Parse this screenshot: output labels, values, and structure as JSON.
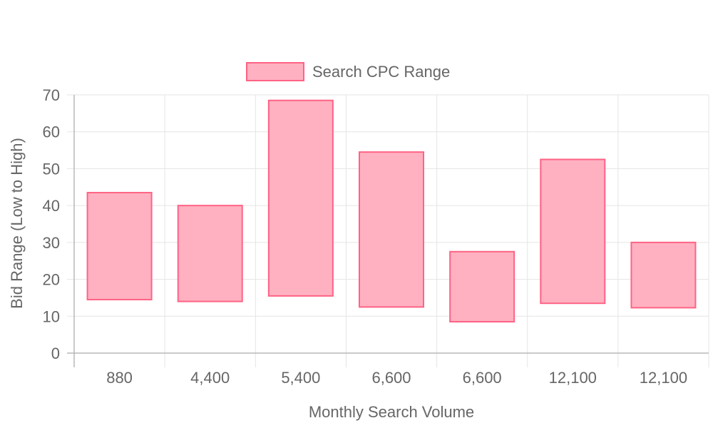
{
  "chart_data": {
    "type": "bar",
    "subtype": "floating-range",
    "xlabel": "Monthly Search Volume",
    "ylabel": "Bid Range (Low to High)",
    "categories": [
      "880",
      "4,400",
      "5,400",
      "6,600",
      "6,600",
      "12,100",
      "12,100"
    ],
    "series": [
      {
        "name": "Search CPC Range",
        "ranges": [
          [
            14.5,
            43.5
          ],
          [
            14,
            40
          ],
          [
            15.5,
            68.5
          ],
          [
            12.5,
            54.5
          ],
          [
            8.5,
            27.5
          ],
          [
            13.5,
            52.5
          ],
          [
            12.3,
            30
          ]
        ],
        "color": "#ff6384",
        "fill": "#ffb1c1"
      }
    ],
    "ylim": [
      0,
      70
    ],
    "yticks": [
      "0",
      "10",
      "20",
      "30",
      "40",
      "50",
      "60",
      "70"
    ],
    "grid": true,
    "legend_position": "top"
  }
}
